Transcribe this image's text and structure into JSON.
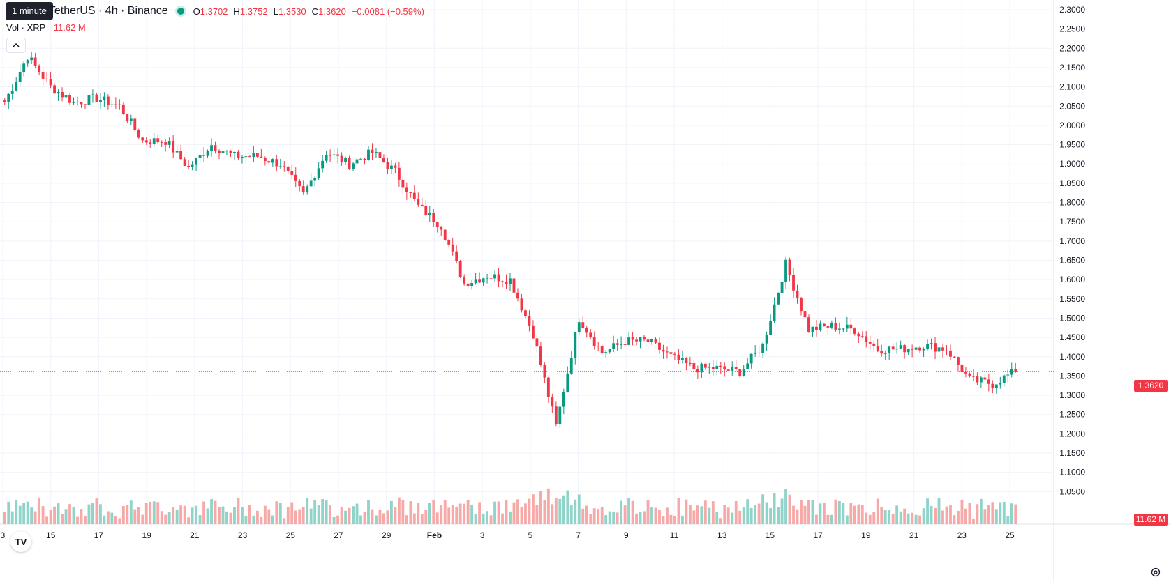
{
  "header": {
    "tooltip": "1 minute",
    "symbol": "TetherUS · 4h · Binance",
    "ohlc": {
      "o_label": "O",
      "o": "1.3702",
      "h_label": "H",
      "h": "1.3752",
      "l_label": "L",
      "l": "1.3530",
      "c_label": "C",
      "c": "1.3620",
      "change": "−0.0081 (−0.59%)"
    }
  },
  "volume_legend": {
    "label": "Vol · XRP",
    "value": "11.62 M"
  },
  "price_badge": "1.3620",
  "volume_badge": "11.62 M",
  "logo_text": "TV",
  "colors": {
    "up": "#089981",
    "down": "#f23645",
    "up_vol": "#8fd3c9",
    "down_vol": "#f7a9a7",
    "grid": "#f0f3fa",
    "axis_text": "#131722"
  },
  "chart_data": {
    "type": "candlestick",
    "title": "",
    "xlabel": "",
    "ylabel": "",
    "ylim": [
      1.0,
      2.3
    ],
    "yticks": [
      "2.3000",
      "2.2500",
      "2.2000",
      "2.1500",
      "2.1000",
      "2.0500",
      "2.0000",
      "1.9500",
      "1.9000",
      "1.8500",
      "1.8000",
      "1.7500",
      "1.7000",
      "1.6500",
      "1.6000",
      "1.5500",
      "1.5000",
      "1.4500",
      "1.4000",
      "1.3500",
      "1.3000",
      "1.2500",
      "1.2000",
      "1.1500",
      "1.1000",
      "1.0500"
    ],
    "xticks": [
      "3",
      "15",
      "17",
      "19",
      "21",
      "23",
      "25",
      "27",
      "29",
      "Feb",
      "3",
      "5",
      "7",
      "9",
      "11",
      "13",
      "15",
      "17",
      "19",
      "21",
      "23",
      "25"
    ],
    "last_price": 1.362,
    "price_path": [
      [
        "13",
        2.06
      ],
      [
        "14",
        2.18
      ],
      [
        "15",
        2.1
      ],
      [
        "16",
        2.06
      ],
      [
        "17",
        2.07
      ],
      [
        "18",
        2.05
      ],
      [
        "19",
        1.96
      ],
      [
        "20",
        1.96
      ],
      [
        "21",
        1.89
      ],
      [
        "22",
        1.95
      ],
      [
        "23",
        1.92
      ],
      [
        "24",
        1.92
      ],
      [
        "25",
        1.9
      ],
      [
        "26",
        1.82
      ],
      [
        "27",
        1.93
      ],
      [
        "28",
        1.9
      ],
      [
        "29",
        1.93
      ],
      [
        "30",
        1.88
      ],
      [
        "31",
        1.79
      ],
      [
        "Feb 1",
        1.74
      ],
      [
        "Feb 2",
        1.59
      ],
      [
        "Feb 3",
        1.61
      ],
      [
        "Feb 4",
        1.6
      ],
      [
        "Feb 5",
        1.46
      ],
      [
        "Feb 6a",
        1.22
      ],
      [
        "Feb 6b",
        1.5
      ],
      [
        "Feb 7",
        1.41
      ],
      [
        "Feb 8",
        1.44
      ],
      [
        "Feb 9",
        1.44
      ],
      [
        "Feb 10",
        1.4
      ],
      [
        "Feb 11",
        1.37
      ],
      [
        "Feb 12",
        1.37
      ],
      [
        "Feb 13",
        1.36
      ],
      [
        "Feb 14",
        1.43
      ],
      [
        "Feb 15",
        1.64
      ],
      [
        "Feb 16",
        1.47
      ],
      [
        "Feb 17",
        1.48
      ],
      [
        "Feb 18",
        1.47
      ],
      [
        "Feb 19",
        1.42
      ],
      [
        "Feb 20",
        1.42
      ],
      [
        "Feb 21",
        1.43
      ],
      [
        "Feb 22",
        1.42
      ],
      [
        "Feb 23",
        1.34
      ],
      [
        "Feb 24",
        1.33
      ],
      [
        "Feb 25",
        1.362
      ]
    ]
  }
}
